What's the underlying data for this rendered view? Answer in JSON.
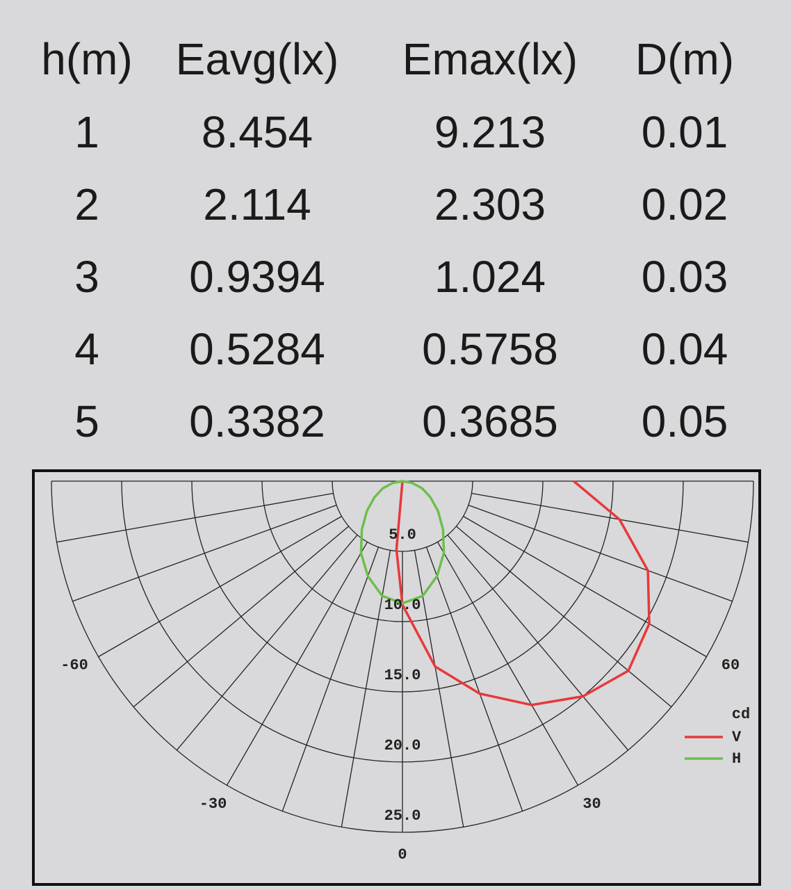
{
  "table": {
    "columns": [
      "h(m)",
      "Eavg(lx)",
      "Emax(lx)",
      "D(m)"
    ],
    "rows": [
      [
        "1",
        "8.454",
        "9.213",
        "0.01"
      ],
      [
        "2",
        "2.114",
        "2.303",
        "0.02"
      ],
      [
        "3",
        "0.9394",
        "1.024",
        "0.03"
      ],
      [
        "4",
        "0.5284",
        "0.5758",
        "0.04"
      ],
      [
        "5",
        "0.3382",
        "0.3685",
        "0.05"
      ]
    ]
  },
  "chart_data": {
    "type": "polar",
    "legend_title": "cd",
    "rlim": [
      0,
      25
    ],
    "rticks": [
      {
        "value": 5,
        "label": "5.0"
      },
      {
        "value": 10,
        "label": "10.0"
      },
      {
        "value": 15,
        "label": "15.0"
      },
      {
        "value": 20,
        "label": "20.0"
      },
      {
        "value": 25,
        "label": "25.0"
      }
    ],
    "thetaticks": [
      -60,
      -30,
      0,
      30,
      60
    ],
    "thetagrid": [
      -90,
      -80,
      -70,
      -60,
      -50,
      -40,
      -30,
      -20,
      -10,
      0,
      10,
      20,
      30,
      40,
      50,
      60,
      70,
      80,
      90
    ],
    "series": [
      {
        "name": "V",
        "color": "#e8383b",
        "x": [
          -10,
          -5,
          0,
          10,
          20,
          30,
          40,
          50,
          60,
          70,
          80,
          90
        ],
        "values": [
          0,
          4.9,
          8.8,
          13.4,
          16.1,
          18.4,
          20.0,
          21.0,
          20.3,
          18.6,
          15.7,
          12.2
        ]
      },
      {
        "name": "H",
        "color": "#6cbf4a",
        "x": [
          -90,
          -80,
          -70,
          -60,
          -50,
          -40,
          -30,
          -20,
          -10,
          0,
          10,
          20,
          30,
          40,
          50,
          60,
          70,
          80,
          90
        ],
        "values": [
          0,
          0.7,
          1.5,
          2.3,
          3.3,
          4.5,
          5.9,
          7.2,
          8.3,
          8.7,
          8.3,
          7.2,
          5.9,
          4.5,
          3.3,
          2.3,
          1.5,
          0.7,
          0
        ]
      }
    ]
  }
}
